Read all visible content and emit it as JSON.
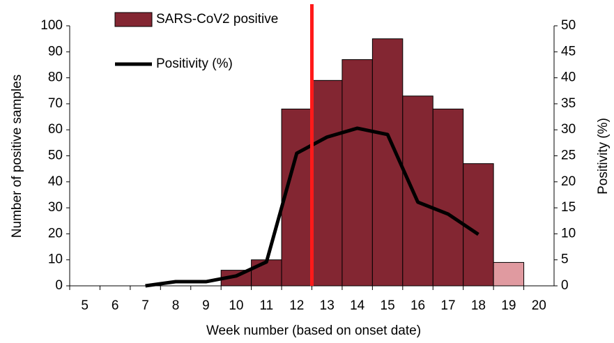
{
  "chart_data": {
    "type": "bar",
    "x_label": "Week number  (based on onset date)",
    "y_label": "Number  of positive samples",
    "y2_label": "Positivity (%)",
    "categories": [
      "5",
      "6",
      "7",
      "8",
      "9",
      "10",
      "11",
      "12",
      "13",
      "14",
      "15",
      "16",
      "17",
      "18",
      "19",
      "20"
    ],
    "series": [
      {
        "name": "SARS-CoV2 positive",
        "color": "#832632",
        "colors": [
          "#832632",
          "#832632",
          "#832632",
          "#832632",
          "#832632",
          "#832632",
          "#832632",
          "#832632",
          "#832632",
          "#832632",
          "#832632",
          "#832632",
          "#832632",
          "#832632",
          "#e09aa0",
          "#832632"
        ],
        "values": [
          0,
          0,
          0,
          0,
          0,
          6,
          10,
          68,
          79,
          87,
          95,
          73,
          68,
          47,
          9,
          0
        ]
      },
      {
        "name": "Positivity (%)",
        "type": "line",
        "axis": "y2",
        "color": "#000000",
        "values": [
          null,
          null,
          0,
          0.8,
          0.8,
          1.9,
          4.6,
          25.5,
          28.6,
          30.3,
          29.1,
          16.1,
          13.8,
          9.9,
          null,
          null
        ]
      }
    ],
    "vline": {
      "x": 12.5,
      "color": "#ff1a1a"
    },
    "ylim": [
      0,
      100
    ],
    "yticks": [
      0,
      10,
      20,
      30,
      40,
      50,
      60,
      70,
      80,
      90,
      100
    ],
    "y2lim": [
      0,
      50
    ],
    "y2ticks": [
      0,
      5,
      10,
      15,
      20,
      25,
      30,
      35,
      40,
      45,
      50
    ]
  }
}
